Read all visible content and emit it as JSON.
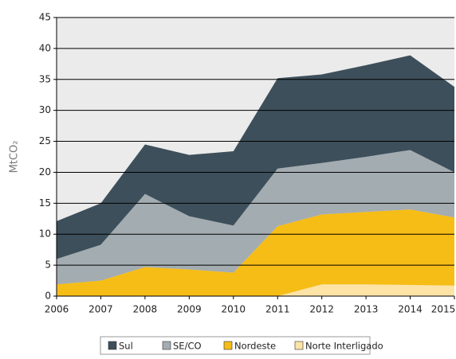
{
  "chart_data": {
    "type": "stacked-area",
    "y_label": "MtCO₂",
    "x": [
      2006,
      2007,
      2008,
      2009,
      2010,
      2011,
      2012,
      2013,
      2014,
      2015
    ],
    "xlim": [
      2006,
      2015
    ],
    "xticks": [
      2006,
      2007,
      2008,
      2009,
      2010,
      2011,
      2012,
      2013,
      2014,
      2015
    ],
    "ylim": [
      0,
      45
    ],
    "yticks": [
      0,
      5,
      10,
      15,
      20,
      25,
      30,
      35,
      40,
      45
    ],
    "grid": true,
    "legend": "bottom",
    "series": [
      {
        "name": "Sul",
        "color": "#3d4f5a",
        "values": [
          6.1,
          6.7,
          8.0,
          9.9,
          12.0,
          14.6,
          14.3,
          14.8,
          15.3,
          13.8
        ]
      },
      {
        "name": "SE/CO",
        "color": "#a3acb1",
        "values": [
          4.1,
          5.8,
          11.8,
          8.6,
          7.6,
          9.3,
          8.3,
          8.9,
          9.6,
          7.3
        ]
      },
      {
        "name": "Nordeste",
        "color": "#f6bd16",
        "values": [
          1.9,
          2.5,
          4.7,
          4.3,
          3.8,
          11.3,
          11.3,
          11.7,
          12.2,
          11.0
        ]
      },
      {
        "name": "Norte Interligado",
        "color": "#fde3a6",
        "values": [
          0,
          0,
          0,
          0,
          0,
          0,
          1.9,
          1.9,
          1.8,
          1.7
        ]
      }
    ]
  }
}
